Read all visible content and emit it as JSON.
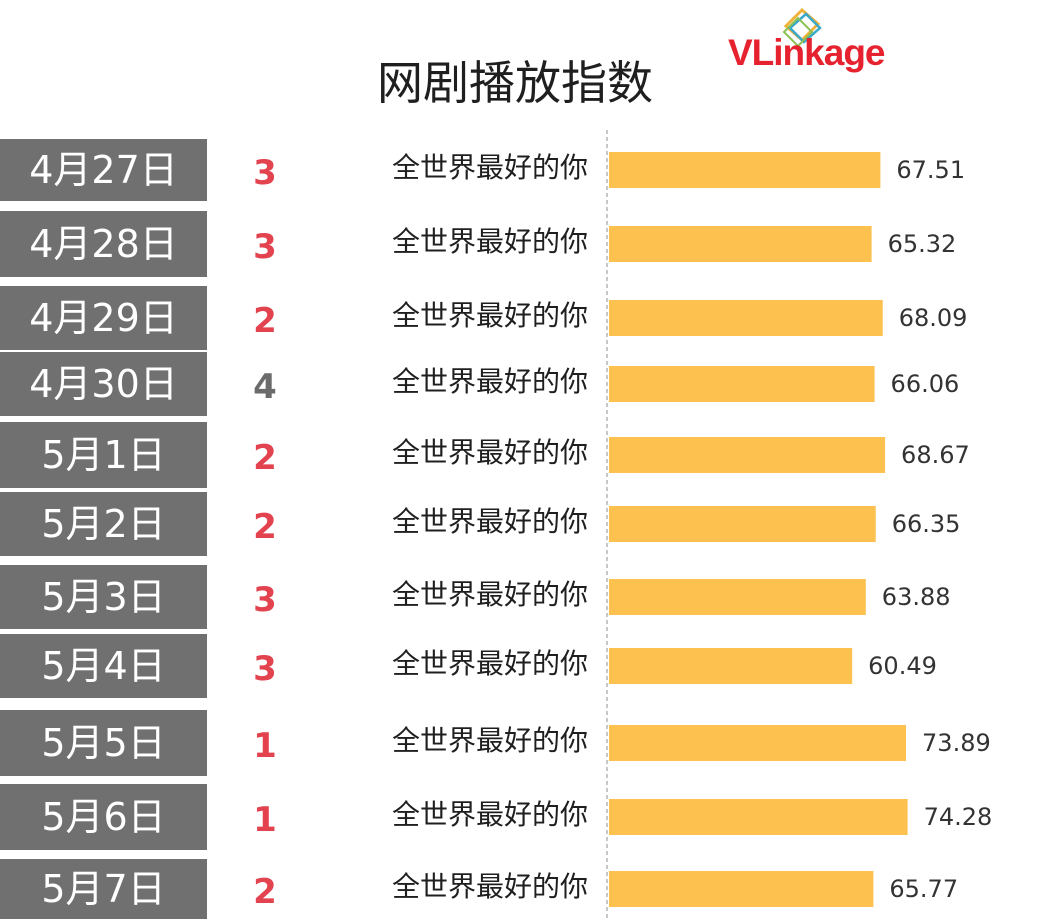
{
  "logo_text": "VLinkage",
  "colors": {
    "bar": "#fcc14e",
    "date_box": "#707070",
    "rank_highlight": "#e2434f",
    "rank_normal": "#6b6b6b",
    "axis": "#c8c8c8",
    "logo_red": "#e5222d"
  },
  "chart_data": {
    "type": "bar",
    "orientation": "horizontal",
    "title": "网剧播放指数",
    "grid": false,
    "rows": [
      {
        "date": "4月27日",
        "rank": "3",
        "rank_color": "#e2434f",
        "name": "全世界最好的你",
        "value": 67.51
      },
      {
        "date": "4月28日",
        "rank": "3",
        "rank_color": "#e2434f",
        "name": "全世界最好的你",
        "value": 65.32
      },
      {
        "date": "4月29日",
        "rank": "2",
        "rank_color": "#e2434f",
        "name": "全世界最好的你",
        "value": 68.09
      },
      {
        "date": "4月30日",
        "rank": "4",
        "rank_color": "#6b6b6b",
        "name": "全世界最好的你",
        "value": 66.06
      },
      {
        "date": "5月1日",
        "rank": "2",
        "rank_color": "#e2434f",
        "name": "全世界最好的你",
        "value": 68.67
      },
      {
        "date": "5月2日",
        "rank": "2",
        "rank_color": "#e2434f",
        "name": "全世界最好的你",
        "value": 66.35
      },
      {
        "date": "5月3日",
        "rank": "3",
        "rank_color": "#e2434f",
        "name": "全世界最好的你",
        "value": 63.88
      },
      {
        "date": "5月4日",
        "rank": "3",
        "rank_color": "#e2434f",
        "name": "全世界最好的你",
        "value": 60.49
      },
      {
        "date": "5月5日",
        "rank": "1",
        "rank_color": "#e2434f",
        "name": "全世界最好的你",
        "value": 73.89
      },
      {
        "date": "5月6日",
        "rank": "1",
        "rank_color": "#e2434f",
        "name": "全世界最好的你",
        "value": 74.28
      },
      {
        "date": "5月7日",
        "rank": "2",
        "rank_color": "#e2434f",
        "name": "全世界最好的你",
        "value": 65.77
      }
    ]
  }
}
